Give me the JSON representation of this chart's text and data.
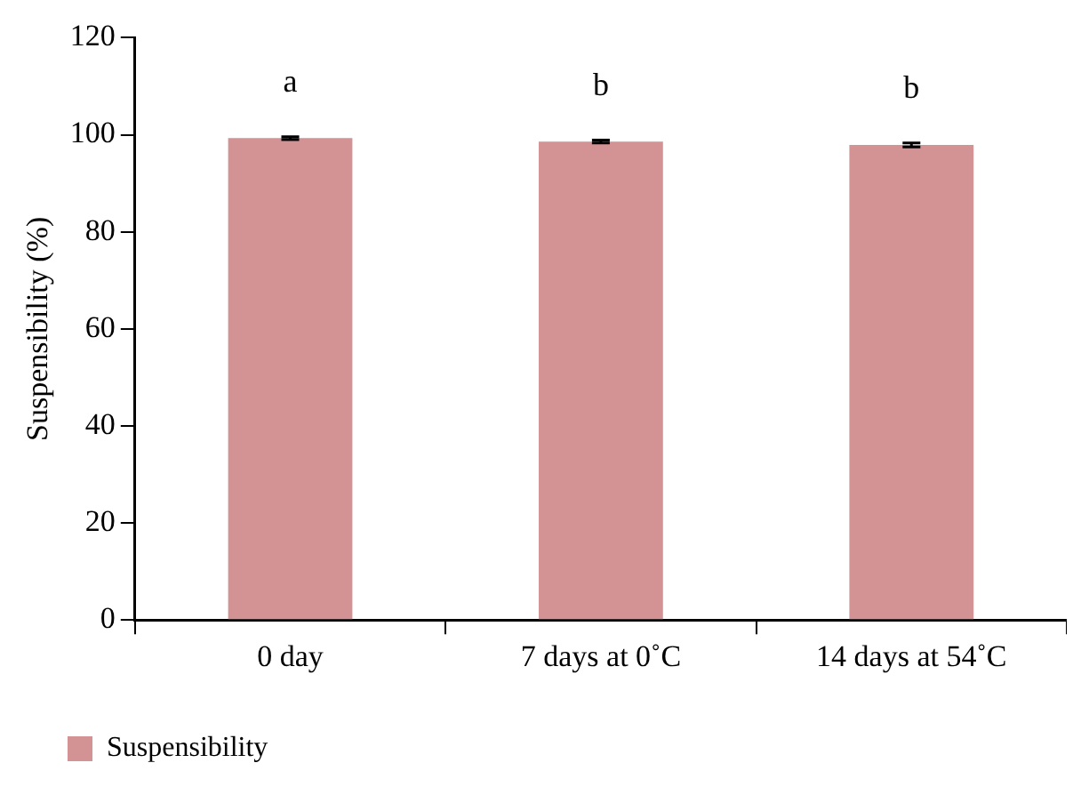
{
  "chart_data": {
    "type": "bar",
    "ylabel": "Suspensibility (%)",
    "categories": [
      "0 day",
      "7 days at 0˚C",
      "14 days at 54˚C"
    ],
    "series": [
      {
        "name": "Suspensibility",
        "color": "#d39294",
        "values": [
          99.3,
          98.6,
          97.9
        ],
        "errors": [
          0.3,
          0.3,
          0.4
        ]
      }
    ],
    "ylim": [
      0,
      120
    ],
    "yticks": [
      0,
      20,
      40,
      60,
      80,
      100,
      120
    ],
    "grid": false,
    "legend": "bottom left",
    "annotations": [
      "a",
      "b",
      "b"
    ]
  }
}
